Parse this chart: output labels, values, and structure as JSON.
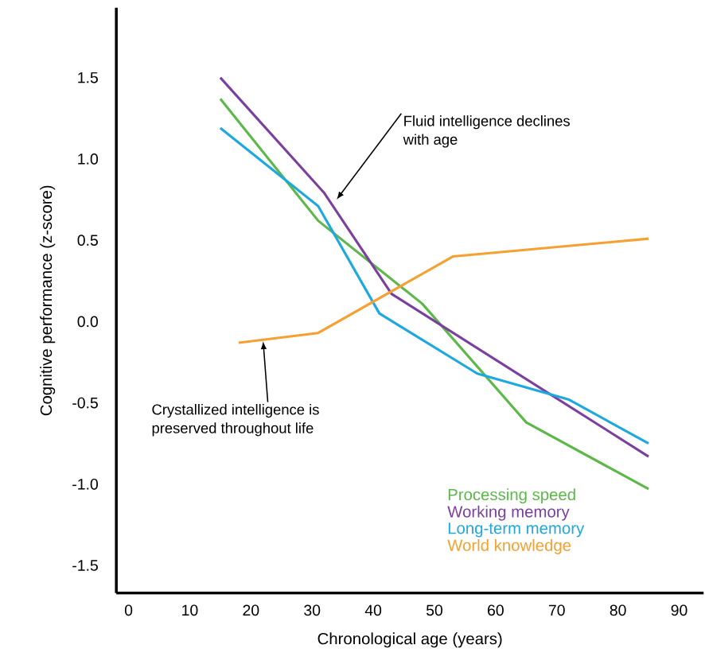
{
  "chart_data": {
    "type": "line",
    "xlabel": "Chronological age  (years)",
    "ylabel": "Cognitive performance (z-score)",
    "xlim": [
      -2,
      94
    ],
    "ylim": [
      -1.67,
      1.93
    ],
    "xticks": [
      0,
      10,
      20,
      30,
      40,
      50,
      60,
      70,
      80,
      90
    ],
    "yticks": [
      -1.5,
      {
        "value": -1,
        "label": "-1.0"
      },
      -0.5,
      {
        "value": 0,
        "label": "0.0"
      },
      0.5,
      {
        "value": 1,
        "label": "1.0"
      },
      1.5
    ],
    "series": [
      {
        "name": "Processing speed",
        "color": "#5cb848",
        "x": [
          15,
          31,
          48,
          65,
          85
        ],
        "values": [
          1.37,
          0.62,
          0.11,
          -0.62,
          -1.03
        ]
      },
      {
        "name": "Working memory",
        "color": "#7b3fa0",
        "x": [
          15,
          32,
          43,
          85
        ],
        "values": [
          1.5,
          0.79,
          0.17,
          -0.83
        ]
      },
      {
        "name": "Long-term  memory",
        "color": "#1ea8e0",
        "x": [
          15,
          31,
          41,
          57,
          72,
          85
        ],
        "values": [
          1.19,
          0.71,
          0.05,
          -0.32,
          -0.48,
          -0.75
        ]
      },
      {
        "name": "World knowledge",
        "color": "#f5a030",
        "x": [
          18,
          31,
          53,
          85
        ],
        "values": [
          -0.13,
          -0.07,
          0.4,
          0.51
        ]
      }
    ],
    "annotations": [
      {
        "text": "Fluid intelligence declines with age",
        "x": 34,
        "y": 0.75
      },
      {
        "text": "Crystallized intelligence is preserved throughout life",
        "x": 22,
        "y": -0.12
      }
    ],
    "legend": "bottom right",
    "grid": false,
    "marker": "none",
    "line_style": "solid"
  }
}
